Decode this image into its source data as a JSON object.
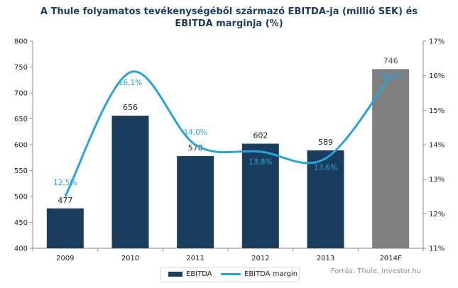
{
  "chart_data": {
    "type": "bar",
    "title": [
      "A Thule folyamatos tevékenységéből  származó EBITDA-ja (millió SEK) és",
      "EBITDA marginja (%)"
    ],
    "categories": [
      "2009",
      "2010",
      "2011",
      "2012",
      "2013",
      "2014F"
    ],
    "series": [
      {
        "name": "EBITDA",
        "type": "bar",
        "values": [
          477,
          656,
          578,
          602,
          589,
          746
        ],
        "labels": [
          "477",
          "656",
          "578",
          "602",
          "589",
          "746"
        ],
        "colors": [
          "#1b3d5d",
          "#1b3d5d",
          "#1b3d5d",
          "#1b3d5d",
          "#1b3d5d",
          "#7f7f7f"
        ],
        "axis": "left"
      },
      {
        "name": "EBITDA margin",
        "type": "line",
        "values": [
          12.5,
          16.1,
          14.0,
          13.8,
          13.6,
          16.0
        ],
        "labels": [
          "12,5%",
          "16,1%",
          "14,0%",
          "13,8%",
          "13,6%",
          "16,0%"
        ],
        "color": "#2aa3d8",
        "axis": "right"
      }
    ],
    "y_left": {
      "min": 400,
      "max": 800,
      "ticks": [
        "400",
        "450",
        "500",
        "550",
        "600",
        "650",
        "700",
        "750",
        "800"
      ]
    },
    "y_right": {
      "min": 11,
      "max": 17,
      "ticks": [
        "11%",
        "12%",
        "13%",
        "14%",
        "15%",
        "16%",
        "17%"
      ]
    },
    "grid": false,
    "legend": "bottom",
    "source": "Forrás: Thule, Investor.hu"
  }
}
